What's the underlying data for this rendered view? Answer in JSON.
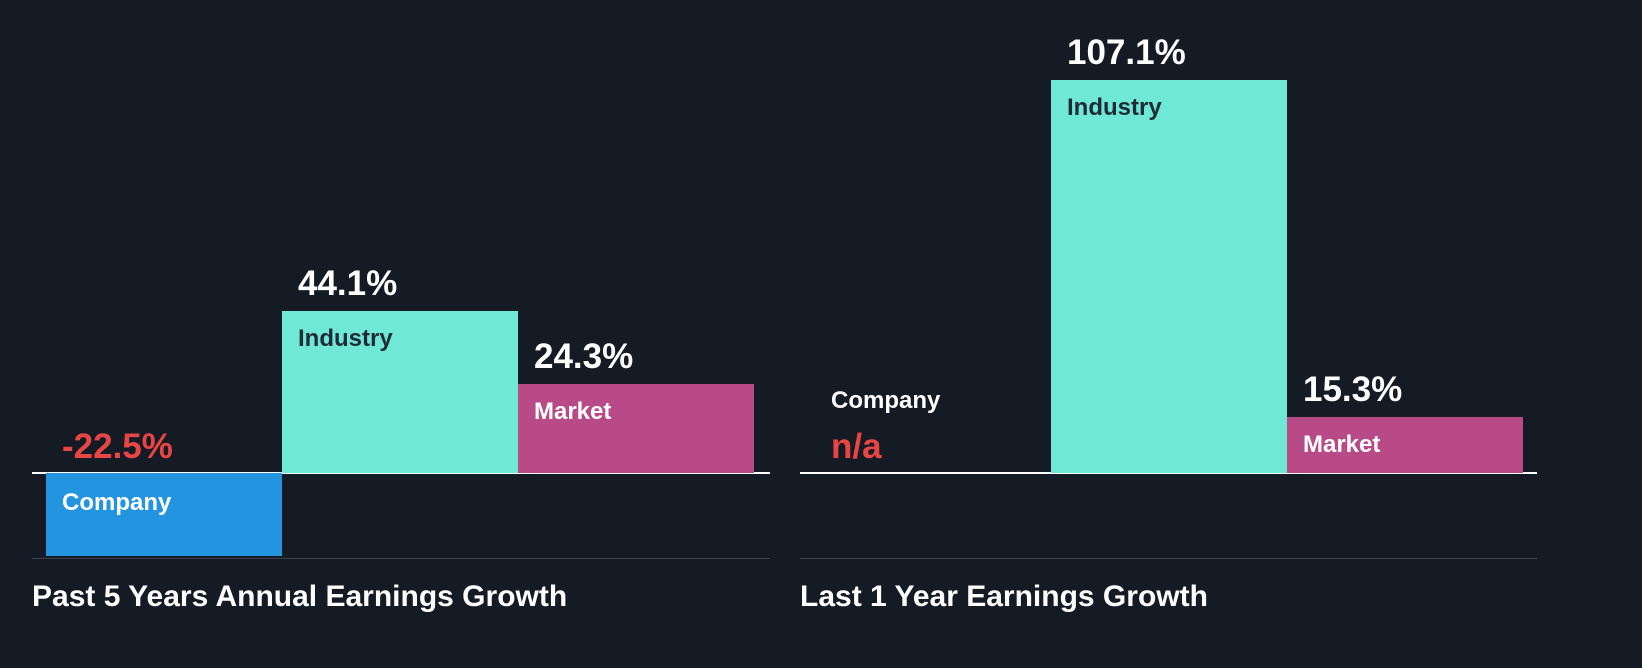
{
  "colors": {
    "background": "#151b24",
    "company": "#2394e0",
    "industry": "#6fe8d6",
    "market": "#b94a88",
    "negative_text": "#e84545",
    "positive_text": "#ffffff",
    "dark_label": "#1f2b37",
    "light_label": "#ffffff"
  },
  "chart_data": [
    {
      "type": "bar",
      "title": "Past 5 Years Annual Earnings Growth",
      "categories": [
        "Company",
        "Industry",
        "Market"
      ],
      "values": [
        -22.5,
        44.1,
        24.3
      ],
      "value_labels": [
        "-22.5%",
        "44.1%",
        "24.3%"
      ],
      "unit": "%",
      "xlabel": "",
      "ylabel": ""
    },
    {
      "type": "bar",
      "title": "Last 1 Year Earnings Growth",
      "categories": [
        "Company",
        "Industry",
        "Market"
      ],
      "values": [
        null,
        107.1,
        15.3
      ],
      "value_labels": [
        "n/a",
        "107.1%",
        "15.3%"
      ],
      "unit": "%",
      "xlabel": "",
      "ylabel": ""
    }
  ]
}
